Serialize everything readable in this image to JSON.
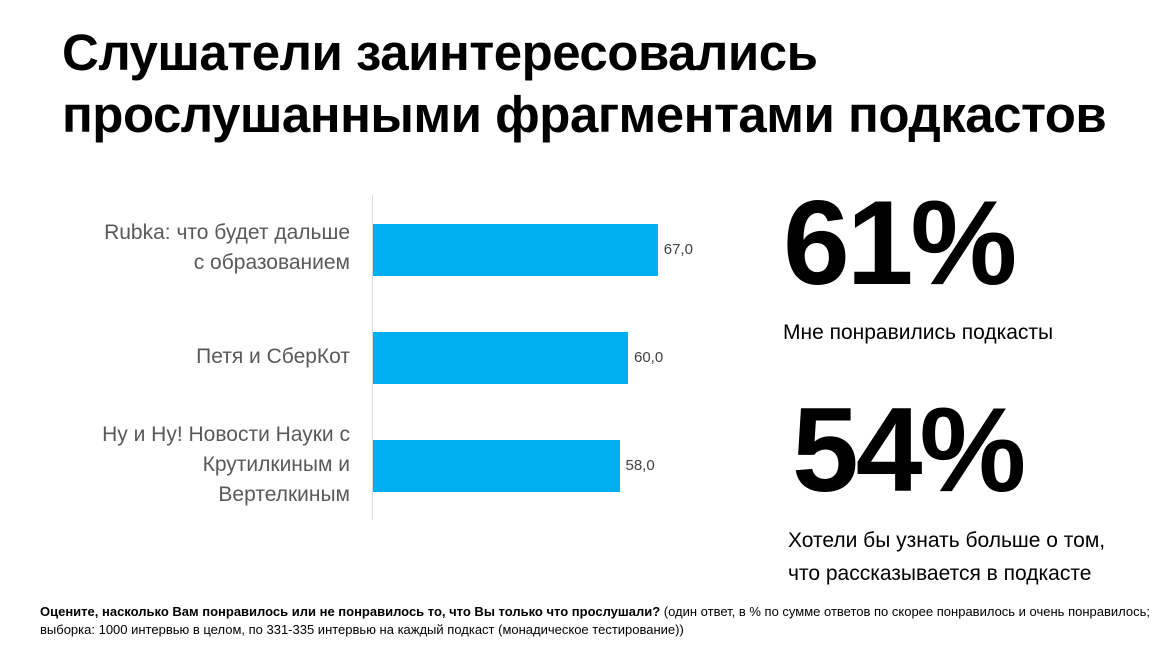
{
  "title_lines": [
    "Слушатели заинтересовались",
    "прослушанными фрагментами подкастов"
  ],
  "chart_data": {
    "type": "bar",
    "orientation": "horizontal",
    "categories": [
      [
        "Rubka: что будет дальше",
        "с образованием"
      ],
      [
        "Петя и СберКот"
      ],
      [
        "Ну и Ну! Новости Науки с",
        "Крутилкиным и",
        "Вертелкиным"
      ]
    ],
    "values": [
      67.0,
      60.0,
      58.0
    ],
    "value_labels": [
      "67,0",
      "60,0",
      "58,0"
    ],
    "bar_color": "#00aeef",
    "xlim": [
      0,
      100
    ]
  },
  "stats": [
    {
      "value": "61%",
      "caption_lines": [
        "Мне понравились подкасты"
      ]
    },
    {
      "value": "54%",
      "caption_lines": [
        "Хотели бы узнать больше о том,",
        "что рассказывается в подкасте"
      ]
    }
  ],
  "footnote": {
    "question": "Оцените, насколько Вам понравилось или не понравилось то, что Вы только что прослушали?",
    "details": " (один ответ, в % по сумме ответов по скорее понравилось и очень понравилось;  выборка: 1000 интервью в целом, по 331-335 интервью на каждый подкаст (монадическое тестирование))"
  }
}
